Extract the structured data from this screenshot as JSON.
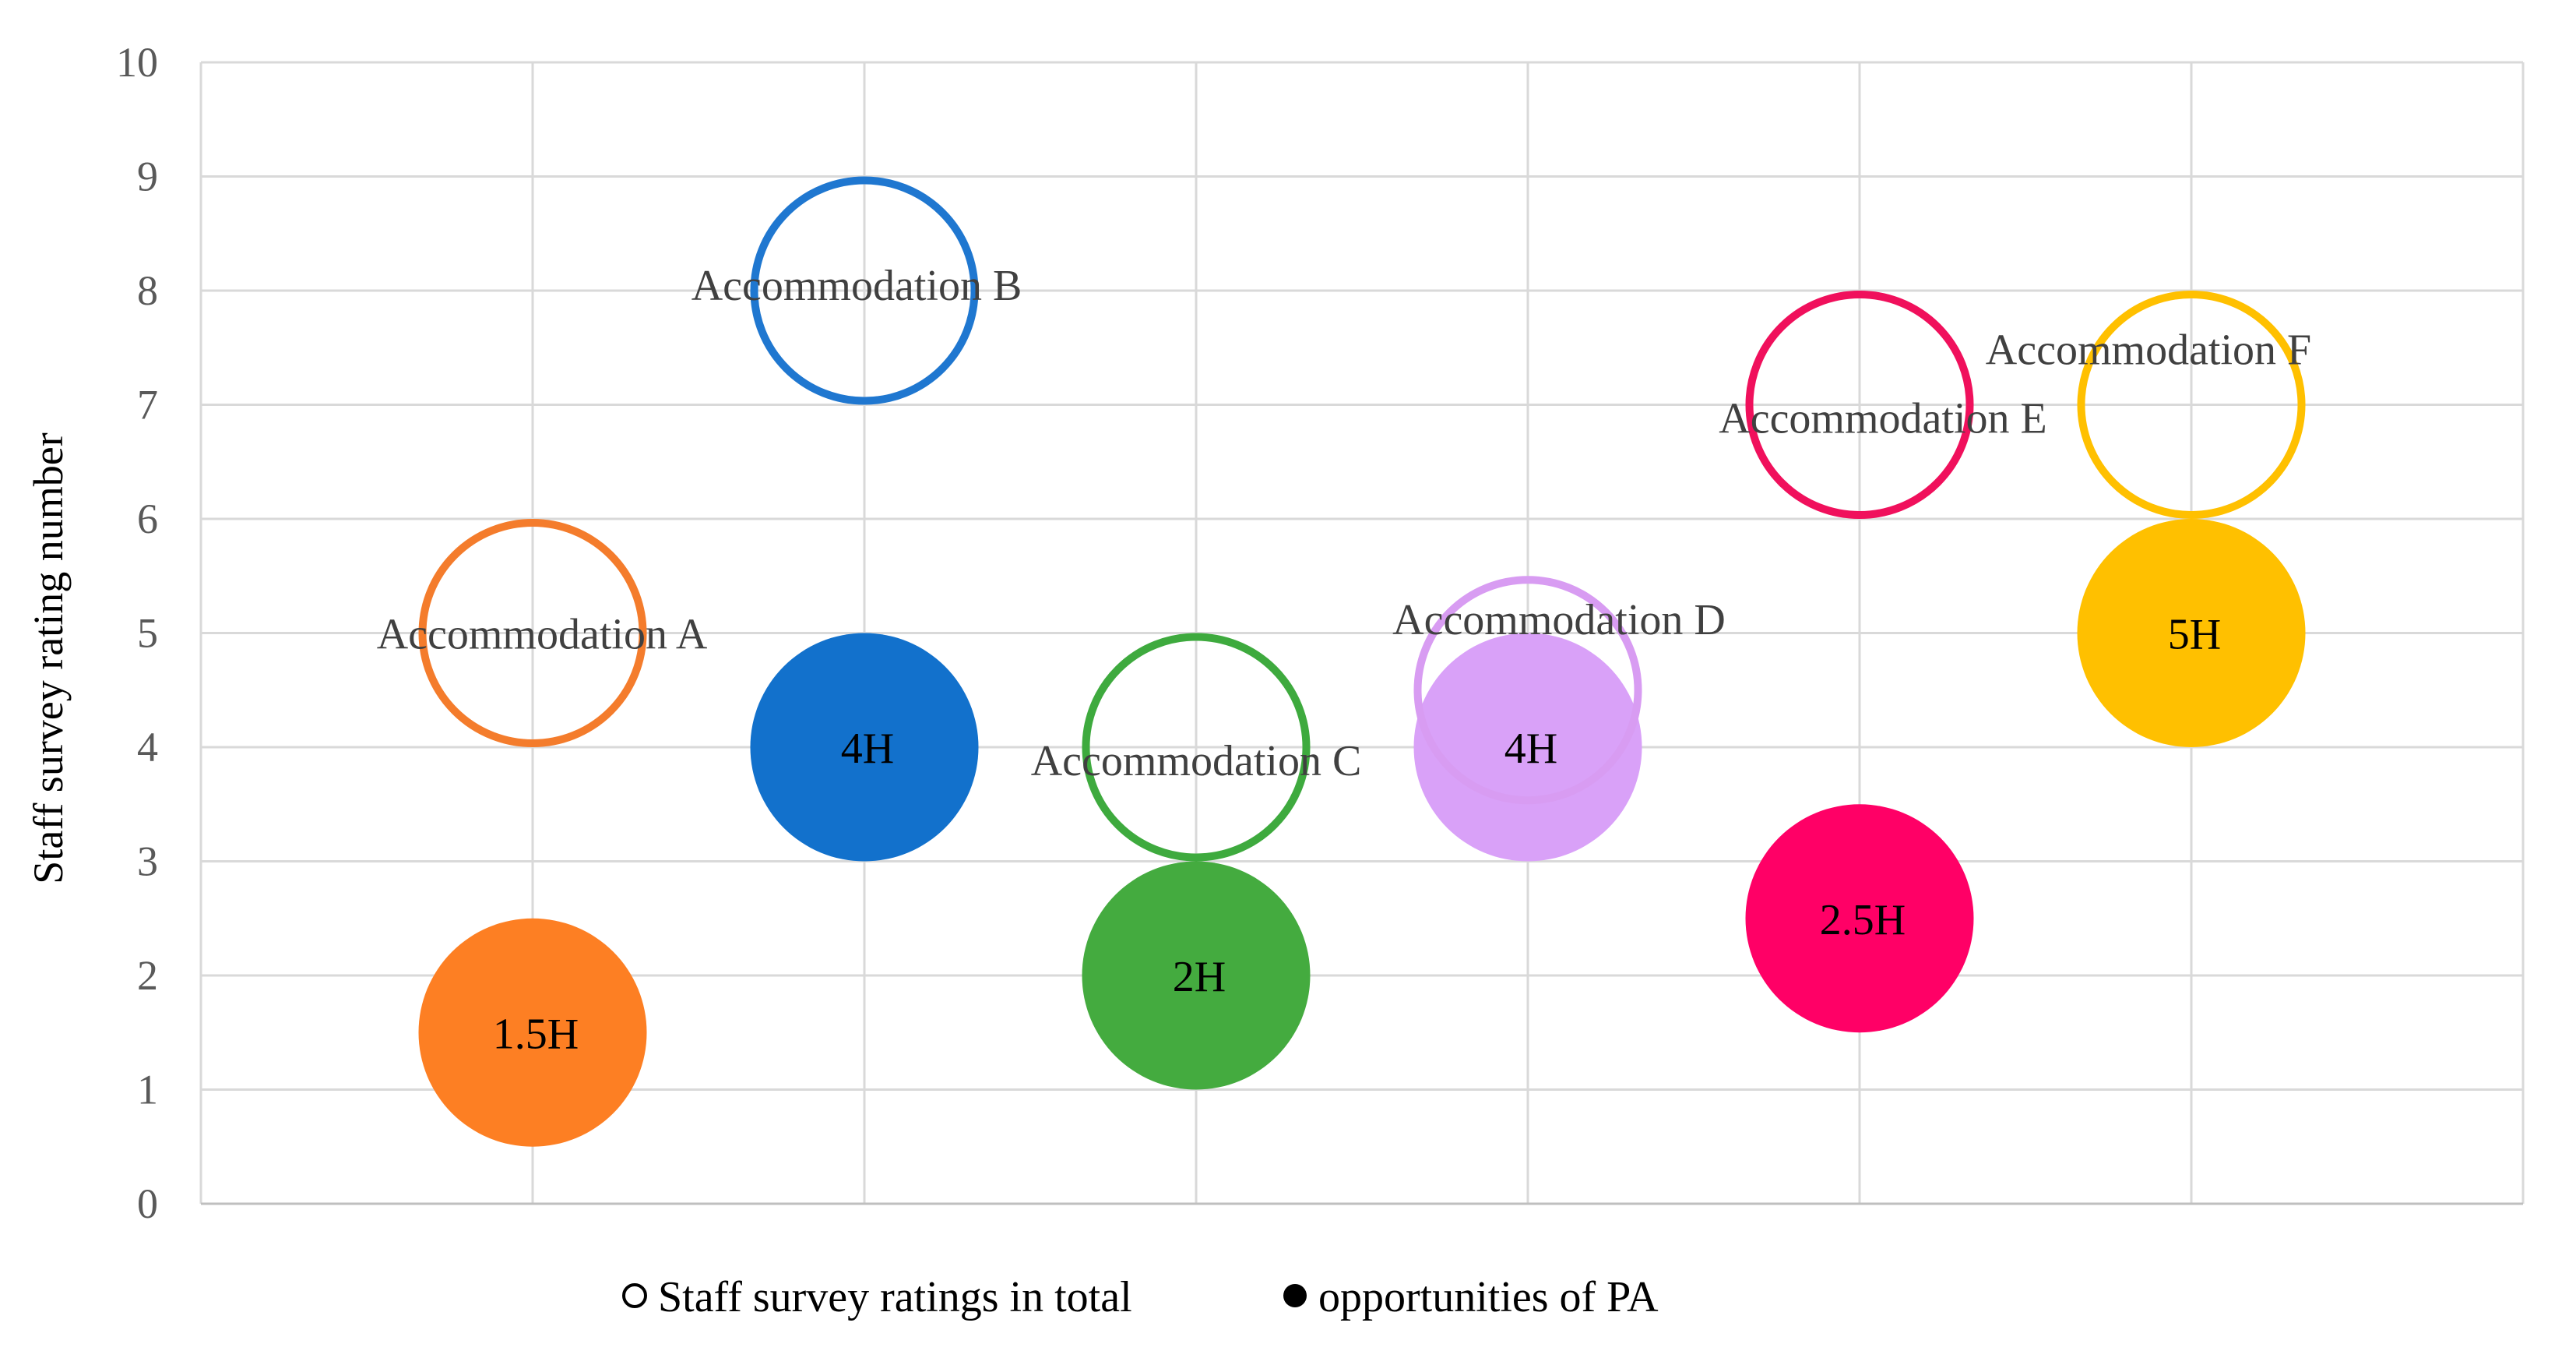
{
  "chart_data": {
    "type": "bubble",
    "title": "",
    "xlabel": "",
    "ylabel": "Staff survey rating number",
    "ylim": [
      0,
      10
    ],
    "yticks": [
      "0",
      "1",
      "2",
      "3",
      "4",
      "5",
      "6",
      "7",
      "8",
      "9",
      "10"
    ],
    "xlim": [
      0,
      7
    ],
    "grid": true,
    "legend_position": "bottom",
    "series": [
      {
        "name": "Staff survey ratings in total",
        "marker": "open",
        "points": [
          {
            "x": 1,
            "y": 5,
            "size": 1,
            "label": "Accommodation A",
            "color": "#F47C2C"
          },
          {
            "x": 2,
            "y": 8,
            "size": 1,
            "label": "Accommodation B",
            "color": "#1F77D0"
          },
          {
            "x": 3,
            "y": 4,
            "size": 1,
            "label": "Accommodation C",
            "color": "#3EAA3E"
          },
          {
            "x": 4,
            "y": 4.5,
            "size": 1,
            "label": "Accommodation D",
            "color": "#D89CF2"
          },
          {
            "x": 5,
            "y": 7,
            "size": 1,
            "label": "Accommodation E",
            "color": "#F0105C"
          },
          {
            "x": 6,
            "y": 7,
            "size": 1,
            "label": "Accommodation F",
            "color": "#FFC000"
          }
        ]
      },
      {
        "name": "opportunities of PA",
        "marker": "filled",
        "points": [
          {
            "x": 1,
            "y": 1.5,
            "size": 1,
            "label": "1.5H",
            "color": "#FD7F23"
          },
          {
            "x": 2,
            "y": 4,
            "size": 1,
            "label": "4H",
            "color": "#1271CC"
          },
          {
            "x": 3,
            "y": 2,
            "size": 1,
            "label": "2H",
            "color": "#44AB3F"
          },
          {
            "x": 4,
            "y": 4,
            "size": 1,
            "label": "4H",
            "color": "#D9A1F8"
          },
          {
            "x": 5,
            "y": 2.5,
            "size": 1,
            "label": "2.5H",
            "color": "#FF0066"
          },
          {
            "x": 6,
            "y": 5,
            "size": 1,
            "label": "5H",
            "color": "#FFC000"
          }
        ]
      }
    ]
  }
}
